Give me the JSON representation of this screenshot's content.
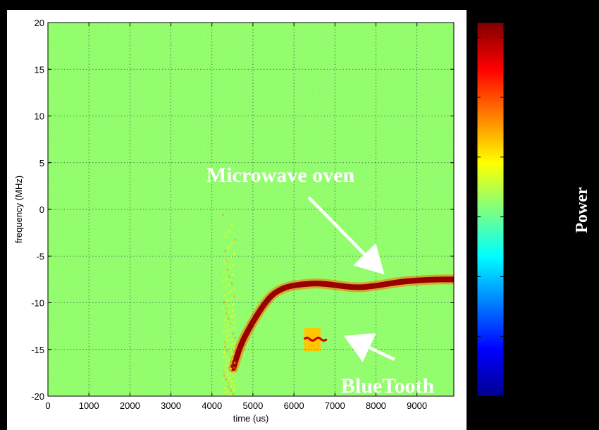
{
  "chart_data": {
    "type": "heatmap",
    "xlabel": "time (us)",
    "ylabel": "frequency (MHz)",
    "xlim": [
      0,
      9900
    ],
    "ylim": [
      -20,
      20
    ],
    "x_ticks": [
      0,
      1000,
      2000,
      3000,
      4000,
      5000,
      6000,
      7000,
      8000,
      9000
    ],
    "y_ticks": [
      -20,
      -15,
      -10,
      -5,
      0,
      5,
      10,
      15,
      20
    ],
    "grid": true,
    "colormap": "jet",
    "background_level": -75,
    "colorbar": {
      "label": "Power",
      "range": [
        -140,
        -15
      ],
      "ticks": [
        -20,
        -40,
        -60,
        -80,
        -100,
        -120
      ]
    },
    "signals": [
      {
        "name": "Microwave oven",
        "kind": "frequency sweep",
        "power": -18,
        "points": [
          [
            4520,
            -17
          ],
          [
            4700,
            -14.5
          ],
          [
            4900,
            -12.8
          ],
          [
            5100,
            -11.3
          ],
          [
            5300,
            -10
          ],
          [
            5500,
            -9
          ],
          [
            5800,
            -8.3
          ],
          [
            6200,
            -8
          ],
          [
            6600,
            -7.9
          ],
          [
            7000,
            -8.1
          ],
          [
            7500,
            -8.4
          ],
          [
            8000,
            -8.2
          ],
          [
            8500,
            -7.8
          ],
          [
            9000,
            -7.6
          ],
          [
            9500,
            -7.5
          ],
          [
            9900,
            -7.5
          ]
        ]
      },
      {
        "name": "BlueTooth",
        "kind": "burst",
        "power": -55,
        "time_range": [
          6250,
          6650
        ],
        "freq_range": [
          -15.2,
          -12.7
        ],
        "center_freq": -13.9
      },
      {
        "name": "broadband onset",
        "kind": "wideband burst",
        "power": -62,
        "time_range": [
          4250,
          4550
        ],
        "freq_range": [
          -20,
          -0.5
        ]
      }
    ],
    "annotations": [
      {
        "text": "Microwave oven",
        "arrow_to": [
          8100,
          -6.5
        ]
      },
      {
        "text": "BlueTooth",
        "arrow_to": [
          7350,
          -13.8
        ]
      }
    ]
  }
}
